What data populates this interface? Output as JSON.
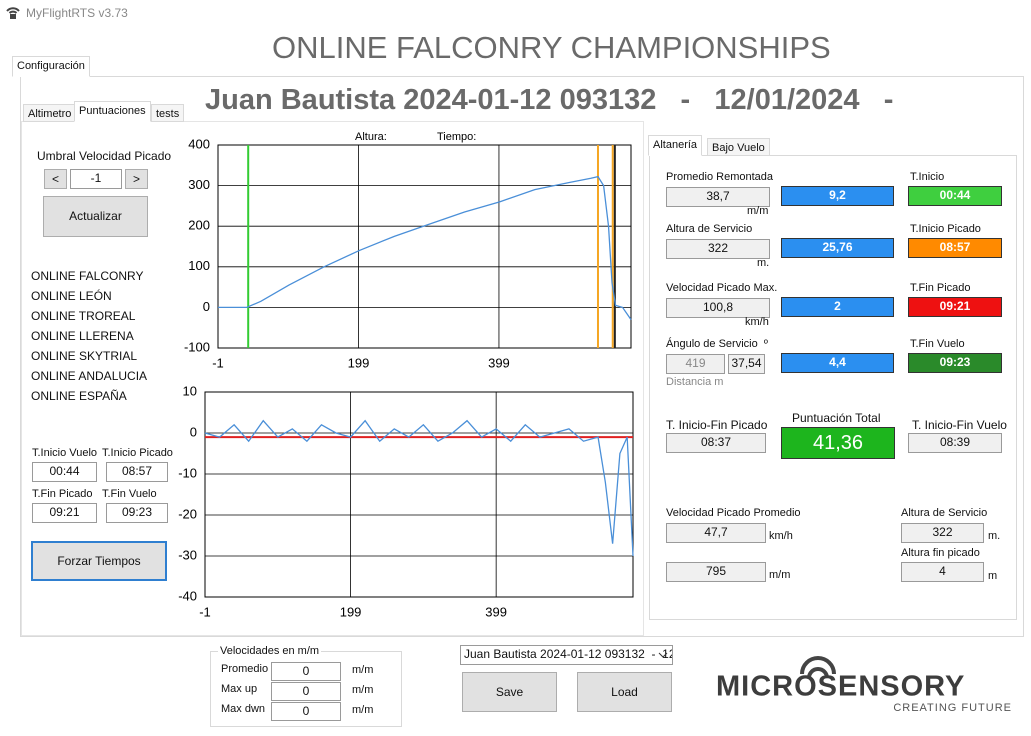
{
  "window_title": "MyFlightRTS v3.73",
  "main_title": "ONLINE FALCONRY CHAMPIONSHIPS",
  "tabs": [
    "Configuración"
  ],
  "sub_tabs": [
    "Altimetro",
    "Puntuaciones",
    "tests"
  ],
  "session_header": "Juan Bautista 2024-01-12 093132   -   12/01/2024   -",
  "left_panel": {
    "threshold_label": "Umbral Velocidad Picado",
    "prev_button": "<",
    "threshold_value": "-1",
    "next_button": ">",
    "update_button": "Actualizar",
    "competitions": [
      "ONLINE FALCONRY",
      "ONLINE LEÓN",
      "ONLINE TROREAL",
      "ONLINE LLERENA",
      "ONLINE SKYTRIAL",
      "ONLINE ANDALUCIA",
      "ONLINE ESPAÑA"
    ],
    "times": [
      {
        "label": "T.Inicio Vuelo",
        "value": "00:44"
      },
      {
        "label": "T.Inicio Picado",
        "value": "08:57"
      },
      {
        "label": "T.Fin Picado",
        "value": "09:21"
      },
      {
        "label": "T.Fin Vuelo",
        "value": "09:23"
      }
    ],
    "force_button": "Forzar Tiempos"
  },
  "chart_data": [
    {
      "type": "line",
      "header_labels": [
        "Altura:",
        "Tiempo:"
      ],
      "color": "#4a8fd8",
      "grid": true,
      "x": [
        -1,
        40,
        60,
        100,
        150,
        200,
        250,
        300,
        350,
        400,
        450,
        500,
        530,
        540,
        548,
        555,
        560,
        565,
        575,
        587
      ],
      "values": [
        0,
        0,
        15,
        55,
        100,
        140,
        175,
        205,
        235,
        260,
        290,
        308,
        318,
        322,
        300,
        200,
        60,
        5,
        0,
        -30
      ],
      "xlim": [
        -1,
        587
      ],
      "ylim": [
        -100,
        400
      ],
      "xticks": [
        -1,
        199,
        399
      ],
      "yticks": [
        -100,
        0,
        100,
        200,
        300,
        400
      ],
      "markers": [
        {
          "x": 42,
          "color": "#33cc33"
        },
        {
          "x": 540,
          "color": "#f5a623"
        },
        {
          "x": 561,
          "color": "#f5a623"
        },
        {
          "x": 564,
          "color": "#222222"
        }
      ]
    },
    {
      "type": "line",
      "color": "#4a8fd8",
      "grid": true,
      "x": [
        -1,
        19,
        39,
        59,
        79,
        99,
        119,
        139,
        159,
        179,
        199,
        219,
        239,
        259,
        279,
        299,
        319,
        339,
        359,
        379,
        399,
        419,
        439,
        459,
        479,
        499,
        519,
        539,
        549,
        559,
        569,
        579,
        587
      ],
      "values": [
        0,
        -1,
        2,
        -2,
        3,
        -1,
        1,
        -2,
        2,
        0,
        -1,
        3,
        -2,
        1,
        -1,
        2,
        -2,
        0,
        3,
        -1,
        1,
        -2,
        2,
        -1,
        0,
        1,
        -2,
        -1,
        -12,
        -27,
        -5,
        -1,
        -30
      ],
      "xlim": [
        -1,
        587
      ],
      "ylim": [
        -40,
        10
      ],
      "xticks": [
        -1,
        199,
        399
      ],
      "yticks": [
        -40,
        -30,
        -20,
        -10,
        0,
        10
      ],
      "reference_line": {
        "value": -1,
        "color": "#e02020"
      }
    }
  ],
  "right_panel": {
    "tabs": [
      "Altanería",
      "Bajo Vuelo"
    ],
    "score_color": "#2b8ff0",
    "rows": [
      {
        "label": "Promedio Remontada",
        "value": "38,7",
        "unit": "m/m",
        "score": "9,2",
        "time_label": "T.Inicio",
        "time_value": "00:44",
        "time_color": "#3fcf3f"
      },
      {
        "label": "Altura de Servicio",
        "value": "322",
        "unit": "m.",
        "score": "25,76",
        "time_label": "T.Inicio Picado",
        "time_value": "08:57",
        "time_color": "#ff8a00"
      },
      {
        "label": "Velocidad Picado Max.",
        "value": "100,8",
        "unit": "km/h",
        "score": "2",
        "time_label": "T.Fin Picado",
        "time_value": "09:21",
        "time_color": "#ee1111"
      },
      {
        "label": "Ángulo de Servicio  º",
        "value": "37,54",
        "distance": "419",
        "unit": "Distancia m",
        "score": "4,4",
        "time_label": "T.Fin Vuelo",
        "time_value": "09:23",
        "time_color": "#2a8a2a"
      }
    ],
    "dive_duration_label": "T. Inicio-Fin Picado",
    "dive_duration": "08:37",
    "total_label": "Puntuación Total",
    "total": "41,36",
    "total_color": "#1db51d",
    "flight_duration_label": "T. Inicio-Fin Vuelo",
    "flight_duration": "08:39",
    "avg_dive_label": "Velocidad Picado Promedio",
    "avg_dive": "47,7",
    "avg_dive_unit": "km/h",
    "climb": "795",
    "climb_unit": "m/m",
    "service_alt_label": "Altura de Servicio",
    "service_alt": "322",
    "service_alt_unit": "m.",
    "end_alt_label": "Altura fin picado",
    "end_alt": "4",
    "end_alt_unit": "m"
  },
  "bottom": {
    "speeds_title": "Velocidades en m/m",
    "speeds": [
      {
        "label": "Promedio",
        "value": "0",
        "unit": "m/m"
      },
      {
        "label": "Max up",
        "value": "0",
        "unit": "m/m"
      },
      {
        "label": "Max dwn",
        "value": "0",
        "unit": "m/m"
      }
    ],
    "session_select": "Juan Bautista 2024-01-12 093132  -  12",
    "save_button": "Save",
    "load_button": "Load"
  },
  "logo": {
    "name": "MICROSENSORY",
    "tagline": "CREATING FUTURE"
  }
}
